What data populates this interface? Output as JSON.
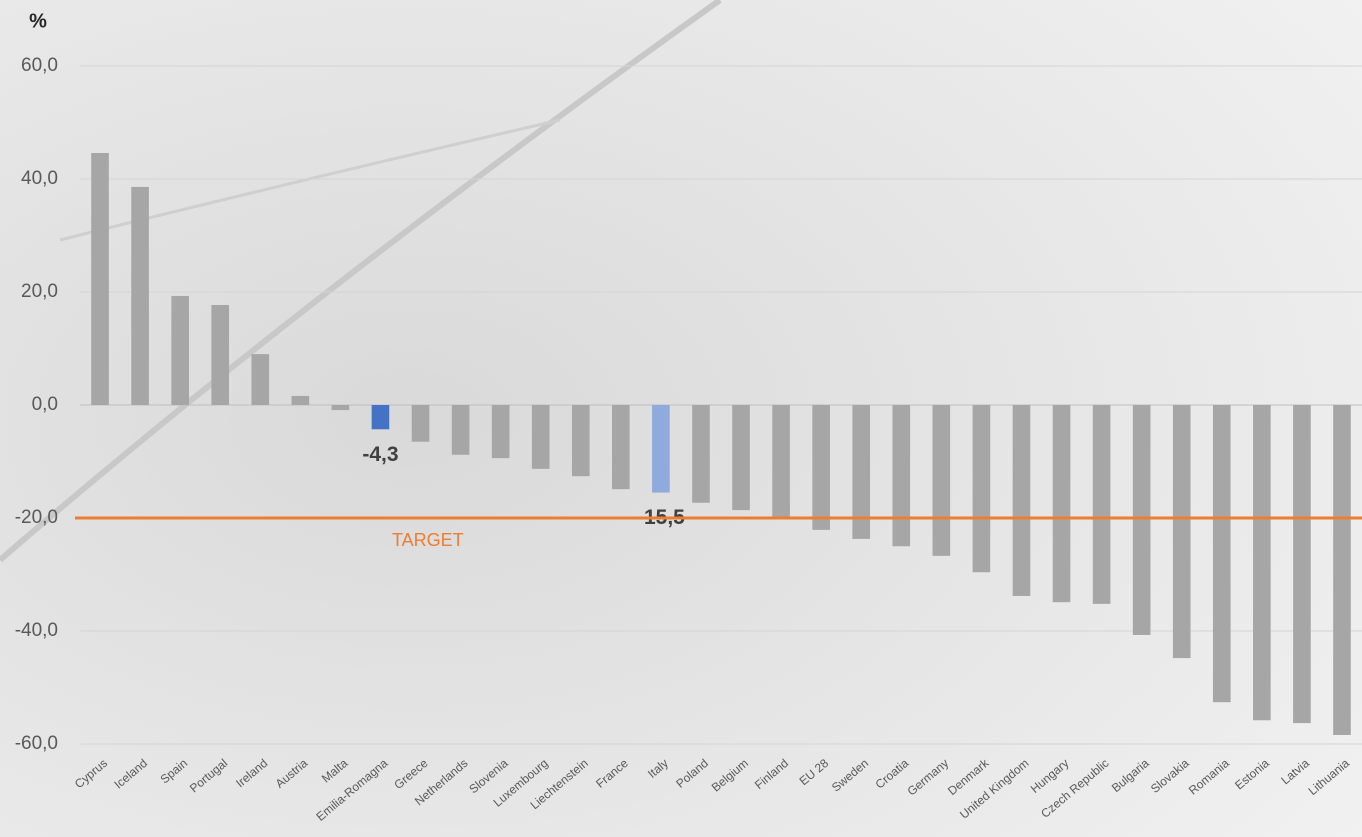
{
  "chart_data": {
    "type": "bar",
    "unit": "%",
    "categories": [
      "Cyprus",
      "Iceland",
      "Spain",
      "Portugal",
      "Ireland",
      "Austria",
      "Malta",
      "Emilia-Romagna",
      "Greece",
      "Netherlands",
      "Slovenia",
      "Luxembourg",
      "Liechtenstein",
      "France",
      "Italy",
      "Poland",
      "Belgium",
      "Finland",
      "EU 28",
      "Sweden",
      "Croatia",
      "Germany",
      "Denmark",
      "United Kingdom",
      "Hungary",
      "Czech Republic",
      "Bulgaria",
      "Slovakia",
      "Romania",
      "Estonia",
      "Latvia",
      "Lithuania"
    ],
    "values": [
      44.6,
      38.6,
      19.3,
      17.7,
      9.0,
      1.6,
      -0.9,
      -4.3,
      -6.5,
      -8.8,
      -9.4,
      -11.3,
      -12.6,
      -14.9,
      -15.5,
      -17.3,
      -18.6,
      -20.0,
      -22.1,
      -23.7,
      -25.0,
      -26.7,
      -29.6,
      -33.8,
      -34.9,
      -35.2,
      -40.7,
      -44.8,
      -52.6,
      -55.8,
      -56.3,
      -58.4
    ],
    "value_labels": [
      null,
      null,
      null,
      null,
      null,
      null,
      null,
      "-4,3",
      null,
      null,
      null,
      null,
      null,
      null,
      "-15,5",
      null,
      null,
      null,
      null,
      null,
      null,
      null,
      null,
      null,
      null,
      null,
      null,
      null,
      null,
      null,
      null,
      null
    ],
    "colors": [
      "#a6a6a6",
      "#a6a6a6",
      "#a6a6a6",
      "#a6a6a6",
      "#a6a6a6",
      "#a6a6a6",
      "#a6a6a6",
      "#4472c4",
      "#a6a6a6",
      "#a6a6a6",
      "#a6a6a6",
      "#a6a6a6",
      "#a6a6a6",
      "#a6a6a6",
      "#8faadc",
      "#a6a6a6",
      "#a6a6a6",
      "#a6a6a6",
      "#a6a6a6",
      "#a6a6a6",
      "#a6a6a6",
      "#a6a6a6",
      "#a6a6a6",
      "#a6a6a6",
      "#a6a6a6",
      "#a6a6a6",
      "#a6a6a6",
      "#a6a6a6",
      "#a6a6a6",
      "#a6a6a6",
      "#a6a6a6",
      "#a6a6a6"
    ],
    "ylim": [
      -60,
      60
    ],
    "yticks": [
      {
        "value": -60,
        "label": "-60,0"
      },
      {
        "value": -40,
        "label": "-40,0"
      },
      {
        "value": -20,
        "label": "-20,0"
      },
      {
        "value": 0,
        "label": "0,0"
      },
      {
        "value": 20,
        "label": "20,0"
      },
      {
        "value": 40,
        "label": "40,0"
      },
      {
        "value": 60,
        "label": "60,0"
      }
    ],
    "grid": true,
    "target": {
      "value": -20,
      "label": "TARGET",
      "color": "#ed7d31"
    }
  }
}
